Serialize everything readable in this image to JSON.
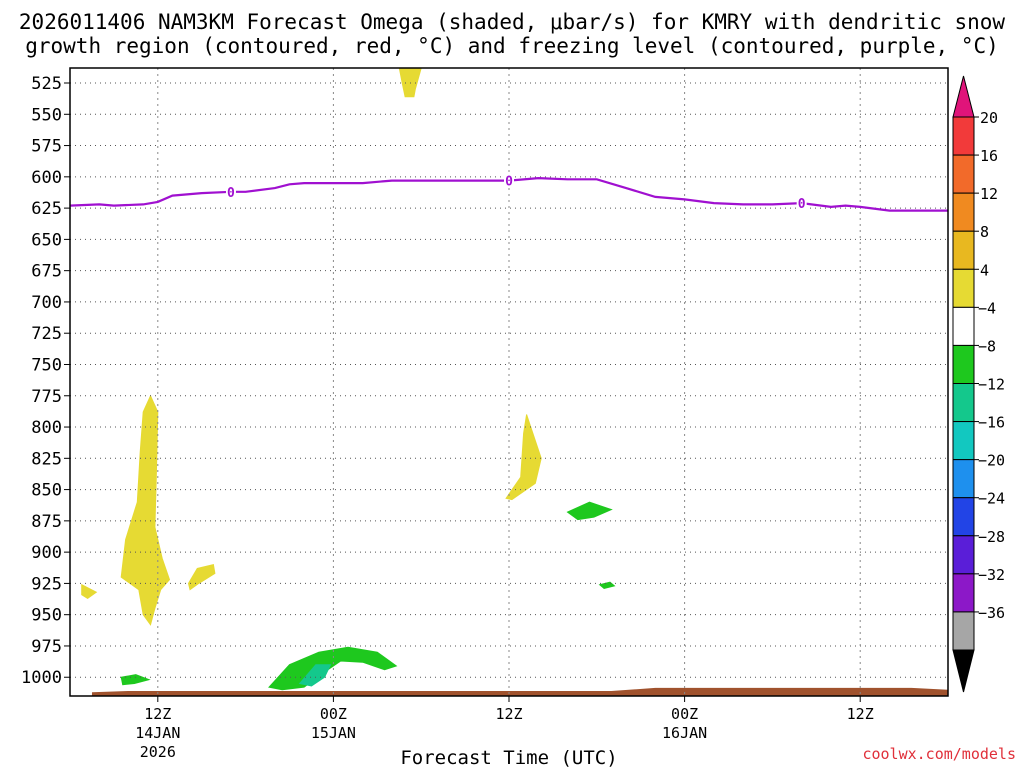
{
  "title_line1": "2026011406 NAM3KM Forecast Omega (shaded, μbar/s) for KMRY with dendritic snow",
  "title_line2": "growth region (contoured, red, °C) and freezing level (contoured, purple, °C)",
  "credit": "coolwx.com/models",
  "chart_data": {
    "type": "contour",
    "title": "2026011406 NAM3KM Forecast Omega (shaded, μbar/s) for KMRY with dendritic snow growth region (contoured, red, °C) and freezing level (contoured, purple, °C)",
    "xlabel": "Forecast Time (UTC)",
    "ylabel": "",
    "x_units": "forecast hours from 2026-01-14 06Z",
    "xlim": [
      0,
      60
    ],
    "y_levels_hPa": [
      525,
      550,
      575,
      600,
      625,
      650,
      675,
      700,
      725,
      750,
      775,
      800,
      825,
      850,
      875,
      900,
      925,
      950,
      975,
      1000
    ],
    "ylim": [
      513,
      1015
    ],
    "x_ticks": [
      {
        "hour": 6,
        "label1": "12Z",
        "label2": "14JAN",
        "label3": "2026"
      },
      {
        "hour": 18,
        "label1": "00Z",
        "label2": "15JAN",
        "label3": ""
      },
      {
        "hour": 30,
        "label1": "12Z",
        "label2": "",
        "label3": ""
      },
      {
        "hour": 42,
        "label1": "00Z",
        "label2": "16JAN",
        "label3": ""
      },
      {
        "hour": 54,
        "label1": "12Z",
        "label2": "",
        "label3": ""
      }
    ],
    "grid": true,
    "colorbar": {
      "labels": [
        "20",
        "16",
        "12",
        "8",
        "4",
        "−4",
        "−8",
        "−12",
        "−16",
        "−20",
        "−24",
        "−28",
        "−32",
        "−36"
      ],
      "bands": [
        {
          "from": 16,
          "to": 20,
          "color": "#f23a3a"
        },
        {
          "from": 12,
          "to": 16,
          "color": "#f26a2a"
        },
        {
          "from": 8,
          "to": 12,
          "color": "#f08a20"
        },
        {
          "from": 4,
          "to": 8,
          "color": "#e8b820"
        },
        {
          "from": 0,
          "to": 4,
          "color": "#e6da33"
        },
        {
          "from": -4,
          "to": 0,
          "color": "#ffffff"
        },
        {
          "from": -8,
          "to": -4,
          "color": "#1ec81e"
        },
        {
          "from": -12,
          "to": -8,
          "color": "#14c88c"
        },
        {
          "from": -16,
          "to": -12,
          "color": "#12c8c0"
        },
        {
          "from": -20,
          "to": -16,
          "color": "#1e90ee"
        },
        {
          "from": -24,
          "to": -20,
          "color": "#2244e6"
        },
        {
          "from": -28,
          "to": -24,
          "color": "#5a1ed8"
        },
        {
          "from": -32,
          "to": -28,
          "color": "#8c18c8"
        },
        {
          "from": -36,
          "to": -32,
          "color": "#a6a6a6"
        }
      ],
      "top_arrow_color": "#e0147a",
      "bottom_arrow_color": "#000000"
    },
    "freezing_level": {
      "color": "#a010d0",
      "label": "0",
      "label_hours": [
        11,
        30,
        50
      ],
      "points": [
        [
          0,
          623
        ],
        [
          2,
          622
        ],
        [
          3,
          623
        ],
        [
          5,
          622
        ],
        [
          6,
          620
        ],
        [
          7,
          615
        ],
        [
          9,
          613
        ],
        [
          11,
          612
        ],
        [
          12,
          612
        ],
        [
          14,
          609
        ],
        [
          15,
          606
        ],
        [
          16,
          605
        ],
        [
          18,
          605
        ],
        [
          20,
          605
        ],
        [
          22,
          603
        ],
        [
          25,
          603
        ],
        [
          28,
          603
        ],
        [
          30,
          603
        ],
        [
          32,
          601
        ],
        [
          34,
          602
        ],
        [
          36,
          602
        ],
        [
          38,
          609
        ],
        [
          40,
          616
        ],
        [
          42,
          618
        ],
        [
          44,
          621
        ],
        [
          46,
          622
        ],
        [
          48,
          622
        ],
        [
          50,
          621
        ],
        [
          52,
          624
        ],
        [
          53,
          623
        ],
        [
          54,
          624
        ],
        [
          56,
          627
        ],
        [
          58,
          627
        ],
        [
          60,
          627
        ]
      ]
    },
    "regions": [
      {
        "value_band": [
          0,
          4
        ],
        "color": "#e6da33",
        "points": [
          [
            22.5,
            513
          ],
          [
            24,
            513
          ],
          [
            23.6,
            530
          ],
          [
            23.5,
            536
          ],
          [
            22.9,
            536
          ],
          [
            22.7,
            525
          ]
        ]
      },
      {
        "value_band": [
          0,
          4
        ],
        "color": "#e6da33",
        "points": [
          [
            5.0,
            788
          ],
          [
            5.5,
            775
          ],
          [
            6.0,
            788
          ],
          [
            5.9,
            840
          ],
          [
            5.8,
            880
          ],
          [
            6.3,
            905
          ],
          [
            6.8,
            922
          ],
          [
            6.2,
            930
          ],
          [
            5.8,
            945
          ],
          [
            5.5,
            958
          ],
          [
            5.0,
            950
          ],
          [
            4.7,
            930
          ],
          [
            3.5,
            920
          ],
          [
            3.8,
            890
          ],
          [
            4.6,
            860
          ],
          [
            4.8,
            820
          ]
        ]
      },
      {
        "value_band": [
          0,
          4
        ],
        "color": "#e6da33",
        "points": [
          [
            0.8,
            926
          ],
          [
            1.8,
            932
          ],
          [
            1.2,
            937
          ],
          [
            0.8,
            934
          ]
        ]
      },
      {
        "value_band": [
          0,
          4
        ],
        "color": "#e6da33",
        "points": [
          [
            8.1,
            925
          ],
          [
            8.7,
            913
          ],
          [
            9.8,
            910
          ],
          [
            9.9,
            917
          ],
          [
            8.8,
            925
          ],
          [
            8.2,
            930
          ]
        ]
      },
      {
        "value_band": [
          0,
          4
        ],
        "color": "#e6da33",
        "points": [
          [
            31.2,
            790
          ],
          [
            32.2,
            825
          ],
          [
            31.8,
            845
          ],
          [
            30.2,
            858
          ],
          [
            29.8,
            857
          ],
          [
            30.8,
            840
          ],
          [
            31.0,
            805
          ]
        ]
      },
      {
        "value_band": [
          -8,
          -4
        ],
        "color": "#1ec81e",
        "points": [
          [
            34,
            868
          ],
          [
            35.5,
            860
          ],
          [
            37.0,
            866
          ],
          [
            35.8,
            872
          ],
          [
            34.7,
            874
          ]
        ]
      },
      {
        "value_band": [
          -8,
          -4
        ],
        "color": "#1ec81e",
        "points": [
          [
            36.2,
            926
          ],
          [
            36.9,
            924
          ],
          [
            37.2,
            927
          ],
          [
            36.5,
            929
          ]
        ]
      },
      {
        "value_band": [
          -8,
          -4
        ],
        "color": "#1ec81e",
        "points": [
          [
            3.5,
            1000
          ],
          [
            4.5,
            998
          ],
          [
            5.4,
            1002
          ],
          [
            4.4,
            1005
          ],
          [
            3.6,
            1006
          ]
        ]
      },
      {
        "value_band": [
          -8,
          -4
        ],
        "color": "#1ec81e",
        "points": [
          [
            13.6,
            1008
          ],
          [
            15,
            990
          ],
          [
            17,
            980
          ],
          [
            19,
            976
          ],
          [
            21,
            980
          ],
          [
            22.3,
            991
          ],
          [
            21.5,
            994
          ],
          [
            20,
            988
          ],
          [
            18.5,
            987
          ],
          [
            17.5,
            995
          ],
          [
            16,
            1008
          ],
          [
            14.5,
            1010
          ]
        ]
      },
      {
        "value_band": [
          -12,
          -8
        ],
        "color": "#14c88c",
        "points": [
          [
            15.7,
            1005
          ],
          [
            16.8,
            990
          ],
          [
            17.8,
            990
          ],
          [
            17.4,
            1000
          ],
          [
            16.5,
            1007
          ]
        ]
      }
    ],
    "terrain": {
      "color": "#a0522d",
      "points": [
        [
          1.5,
          1012
        ],
        [
          4,
          1011
        ],
        [
          10,
          1011
        ],
        [
          25,
          1011
        ],
        [
          37,
          1011
        ],
        [
          40,
          1008.5
        ],
        [
          42,
          1008.5
        ],
        [
          55,
          1008.5
        ],
        [
          57.5,
          1008.5
        ],
        [
          60,
          1010
        ]
      ]
    }
  }
}
